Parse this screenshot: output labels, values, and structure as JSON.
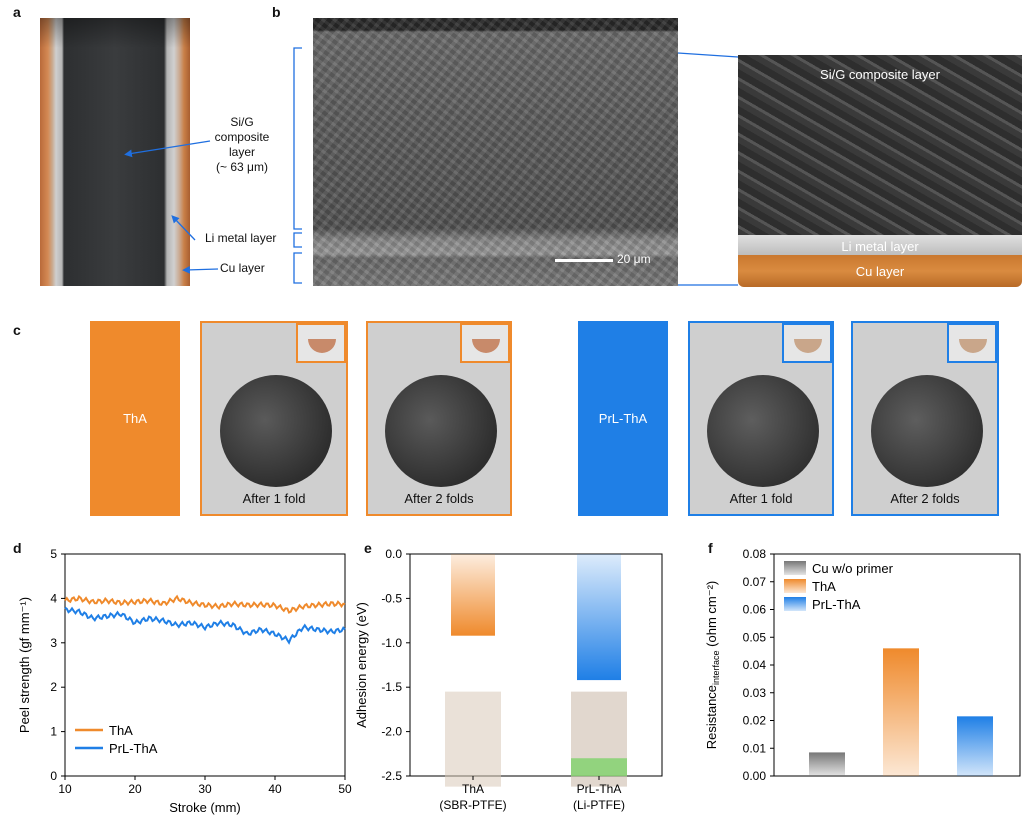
{
  "panels": {
    "a": "a",
    "b": "b",
    "c": "c",
    "d": "d",
    "e": "e",
    "f": "f"
  },
  "panel_a": {
    "sig_label": [
      "Si/G",
      "composite",
      "layer",
      "(~ 63 μm)"
    ],
    "li_label": "Li metal layer",
    "cu_label": "Cu layer"
  },
  "panel_b": {
    "scalebar": "20 μm",
    "sig_label": "Si/G composite layer",
    "li_label": "Li metal layer",
    "cu_label": "Cu layer"
  },
  "panel_c": {
    "tha_label": "ThA",
    "prl_label": "PrL-ThA",
    "fold1": "After 1 fold",
    "fold2": "After 2 folds",
    "tha_color": "#ef8a2c",
    "prl_color": "#1f7fe6"
  },
  "chart_data": [
    {
      "type": "line",
      "panel": "d",
      "xlabel": "Stroke (mm)",
      "ylabel": "Peel strength (gf mm⁻¹)",
      "xlim": [
        10,
        50
      ],
      "ylim": [
        0,
        5
      ],
      "xticks": [
        10,
        20,
        30,
        40,
        50
      ],
      "yticks": [
        0,
        1,
        2,
        3,
        4,
        5
      ],
      "legend": "bottom-left",
      "series": [
        {
          "name": "ThA",
          "color": "#ef8a2c",
          "x": [
            10,
            12,
            14,
            16,
            18,
            20,
            22,
            24,
            26,
            28,
            30,
            32,
            34,
            36,
            38,
            40,
            42,
            44,
            46,
            48,
            50
          ],
          "values": [
            3.95,
            4.0,
            3.92,
            3.95,
            3.9,
            3.92,
            3.95,
            3.88,
            4.0,
            3.9,
            3.85,
            3.82,
            3.88,
            3.85,
            3.86,
            3.84,
            3.72,
            3.82,
            3.85,
            3.88,
            3.87
          ]
        },
        {
          "name": "PrL-ThA",
          "color": "#1f7fe6",
          "x": [
            10,
            12,
            14,
            16,
            18,
            20,
            22,
            24,
            26,
            28,
            30,
            32,
            34,
            36,
            38,
            40,
            42,
            44,
            46,
            48,
            50
          ],
          "values": [
            3.75,
            3.7,
            3.55,
            3.6,
            3.65,
            3.45,
            3.55,
            3.5,
            3.4,
            3.45,
            3.35,
            3.45,
            3.4,
            3.2,
            3.3,
            3.2,
            3.05,
            3.35,
            3.3,
            3.25,
            3.3
          ]
        }
      ]
    },
    {
      "type": "bar",
      "panel": "e",
      "ylabel": "Adhesion energy (eV)",
      "ylim": [
        -2.5,
        0
      ],
      "yticks": [
        0.0,
        -0.5,
        -1.0,
        -1.5,
        -2.0,
        -2.5
      ],
      "categories": [
        [
          "ThA",
          "(SBR-PTFE)"
        ],
        [
          "PrL-ThA",
          "(Li-PTFE)"
        ]
      ],
      "values": [
        -0.92,
        -1.42
      ],
      "colors": [
        "#ef8a2c",
        "#1f7fe6"
      ]
    },
    {
      "type": "bar",
      "panel": "f",
      "ylabel": "Resistance",
      "ylabel_sub": "interface",
      "ylabel_unit": "(ohm cm⁻²)",
      "ylim": [
        0,
        0.08
      ],
      "yticks": [
        0.0,
        0.01,
        0.02,
        0.03,
        0.04,
        0.05,
        0.06,
        0.07,
        0.08
      ],
      "legend": "top-left",
      "series": [
        {
          "name": "Cu w/o primer",
          "value": 0.0085,
          "color": "#777777"
        },
        {
          "name": "ThA",
          "value": 0.046,
          "color": "#ef8a2c"
        },
        {
          "name": "PrL-ThA",
          "value": 0.0215,
          "color": "#1f7fe6"
        }
      ]
    }
  ]
}
